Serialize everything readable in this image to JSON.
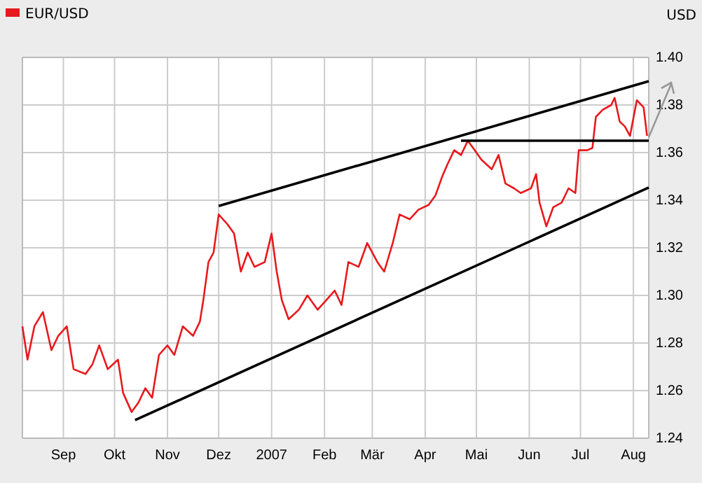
{
  "chart_data": {
    "type": "line",
    "ylabel": "USD",
    "legend": "top left",
    "grid": true,
    "marker": "none",
    "xlim": [
      "2006-08-08",
      "2007-08-10"
    ],
    "xticks": [
      {
        "value": "2006-09-01",
        "label": "Sep"
      },
      {
        "value": "2006-10-01",
        "label": "Okt"
      },
      {
        "value": "2006-11-01",
        "label": "Nov"
      },
      {
        "value": "2006-12-01",
        "label": "Dez"
      },
      {
        "value": "2007-01-01",
        "label": "2007"
      },
      {
        "value": "2007-02-01",
        "label": "Feb"
      },
      {
        "value": "2007-03-01",
        "label": "Mär"
      },
      {
        "value": "2007-04-01",
        "label": "Apr"
      },
      {
        "value": "2007-05-01",
        "label": "Mai"
      },
      {
        "value": "2007-06-01",
        "label": "Jun"
      },
      {
        "value": "2007-07-01",
        "label": "Jul"
      },
      {
        "value": "2007-08-01",
        "label": "Aug"
      }
    ],
    "ylim": [
      1.24,
      1.4
    ],
    "yticks": [
      {
        "value": 1.24,
        "label": "1.24"
      },
      {
        "value": 1.26,
        "label": "1.26"
      },
      {
        "value": 1.28,
        "label": "1.28"
      },
      {
        "value": 1.3,
        "label": "1.30"
      },
      {
        "value": 1.32,
        "label": "1.32"
      },
      {
        "value": 1.34,
        "label": "1.34"
      },
      {
        "value": 1.36,
        "label": "1.36"
      },
      {
        "value": 1.38,
        "label": "1.38"
      },
      {
        "value": 1.4,
        "label": "1.40"
      }
    ],
    "series": [
      {
        "name": "EUR/USD",
        "color": "#e8191d",
        "x": [
          "2006-08-08",
          "2006-08-11",
          "2006-08-15",
          "2006-08-20",
          "2006-08-25",
          "2006-08-29",
          "2006-09-03",
          "2006-09-07",
          "2006-09-14",
          "2006-09-18",
          "2006-09-22",
          "2006-09-27",
          "2006-10-03",
          "2006-10-06",
          "2006-10-11",
          "2006-10-15",
          "2006-10-19",
          "2006-10-23",
          "2006-10-27",
          "2006-11-01",
          "2006-11-05",
          "2006-11-10",
          "2006-11-16",
          "2006-11-20",
          "2006-11-22",
          "2006-11-25",
          "2006-11-28",
          "2006-12-01",
          "2006-12-06",
          "2006-12-10",
          "2006-12-14",
          "2006-12-18",
          "2006-12-22",
          "2006-12-28",
          "2007-01-01",
          "2007-01-04",
          "2007-01-07",
          "2007-01-11",
          "2007-01-17",
          "2007-01-22",
          "2007-01-28",
          "2007-02-02",
          "2007-02-07",
          "2007-02-11",
          "2007-02-15",
          "2007-02-21",
          "2007-02-26",
          "2007-03-04",
          "2007-03-08",
          "2007-03-13",
          "2007-03-17",
          "2007-03-23",
          "2007-03-28",
          "2007-04-03",
          "2007-04-07",
          "2007-04-11",
          "2007-04-14",
          "2007-04-18",
          "2007-04-22",
          "2007-04-26",
          "2007-04-30",
          "2007-05-04",
          "2007-05-10",
          "2007-05-14",
          "2007-05-18",
          "2007-05-23",
          "2007-05-27",
          "2007-06-02",
          "2007-06-05",
          "2007-06-07",
          "2007-06-11",
          "2007-06-15",
          "2007-06-20",
          "2007-06-24",
          "2007-06-28",
          "2007-06-30",
          "2007-07-05",
          "2007-07-08",
          "2007-07-10",
          "2007-07-14",
          "2007-07-19",
          "2007-07-21",
          "2007-07-24",
          "2007-07-27",
          "2007-07-30",
          "2007-08-03",
          "2007-08-07",
          "2007-08-09"
        ],
        "values": [
          1.287,
          1.273,
          1.287,
          1.293,
          1.277,
          1.283,
          1.287,
          1.269,
          1.267,
          1.271,
          1.279,
          1.269,
          1.273,
          1.259,
          1.251,
          1.255,
          1.261,
          1.257,
          1.275,
          1.279,
          1.275,
          1.287,
          1.283,
          1.289,
          1.298,
          1.314,
          1.318,
          1.334,
          1.33,
          1.326,
          1.31,
          1.318,
          1.312,
          1.314,
          1.326,
          1.31,
          1.298,
          1.29,
          1.294,
          1.3,
          1.294,
          1.298,
          1.302,
          1.296,
          1.314,
          1.312,
          1.322,
          1.314,
          1.31,
          1.322,
          1.334,
          1.332,
          1.336,
          1.338,
          1.342,
          1.35,
          1.355,
          1.361,
          1.359,
          1.365,
          1.361,
          1.357,
          1.353,
          1.359,
          1.347,
          1.345,
          1.343,
          1.345,
          1.351,
          1.339,
          1.329,
          1.337,
          1.339,
          1.345,
          1.343,
          1.361,
          1.361,
          1.362,
          1.375,
          1.378,
          1.38,
          1.383,
          1.373,
          1.371,
          1.367,
          1.382,
          1.379,
          1.367
        ]
      },
      {
        "type": "line",
        "color": "#000000",
        "x": [
          "2006-12-01",
          "2007-08-10"
        ],
        "values": [
          1.3376,
          1.39
        ]
      },
      {
        "type": "line",
        "color": "#000000",
        "x": [
          "2006-10-13",
          "2007-08-10"
        ],
        "values": [
          1.2476,
          1.3453
        ]
      },
      {
        "type": "line",
        "color": "#000000",
        "x": [
          "2007-04-22",
          "2007-08-10"
        ],
        "values": [
          1.365,
          1.365
        ]
      }
    ]
  }
}
